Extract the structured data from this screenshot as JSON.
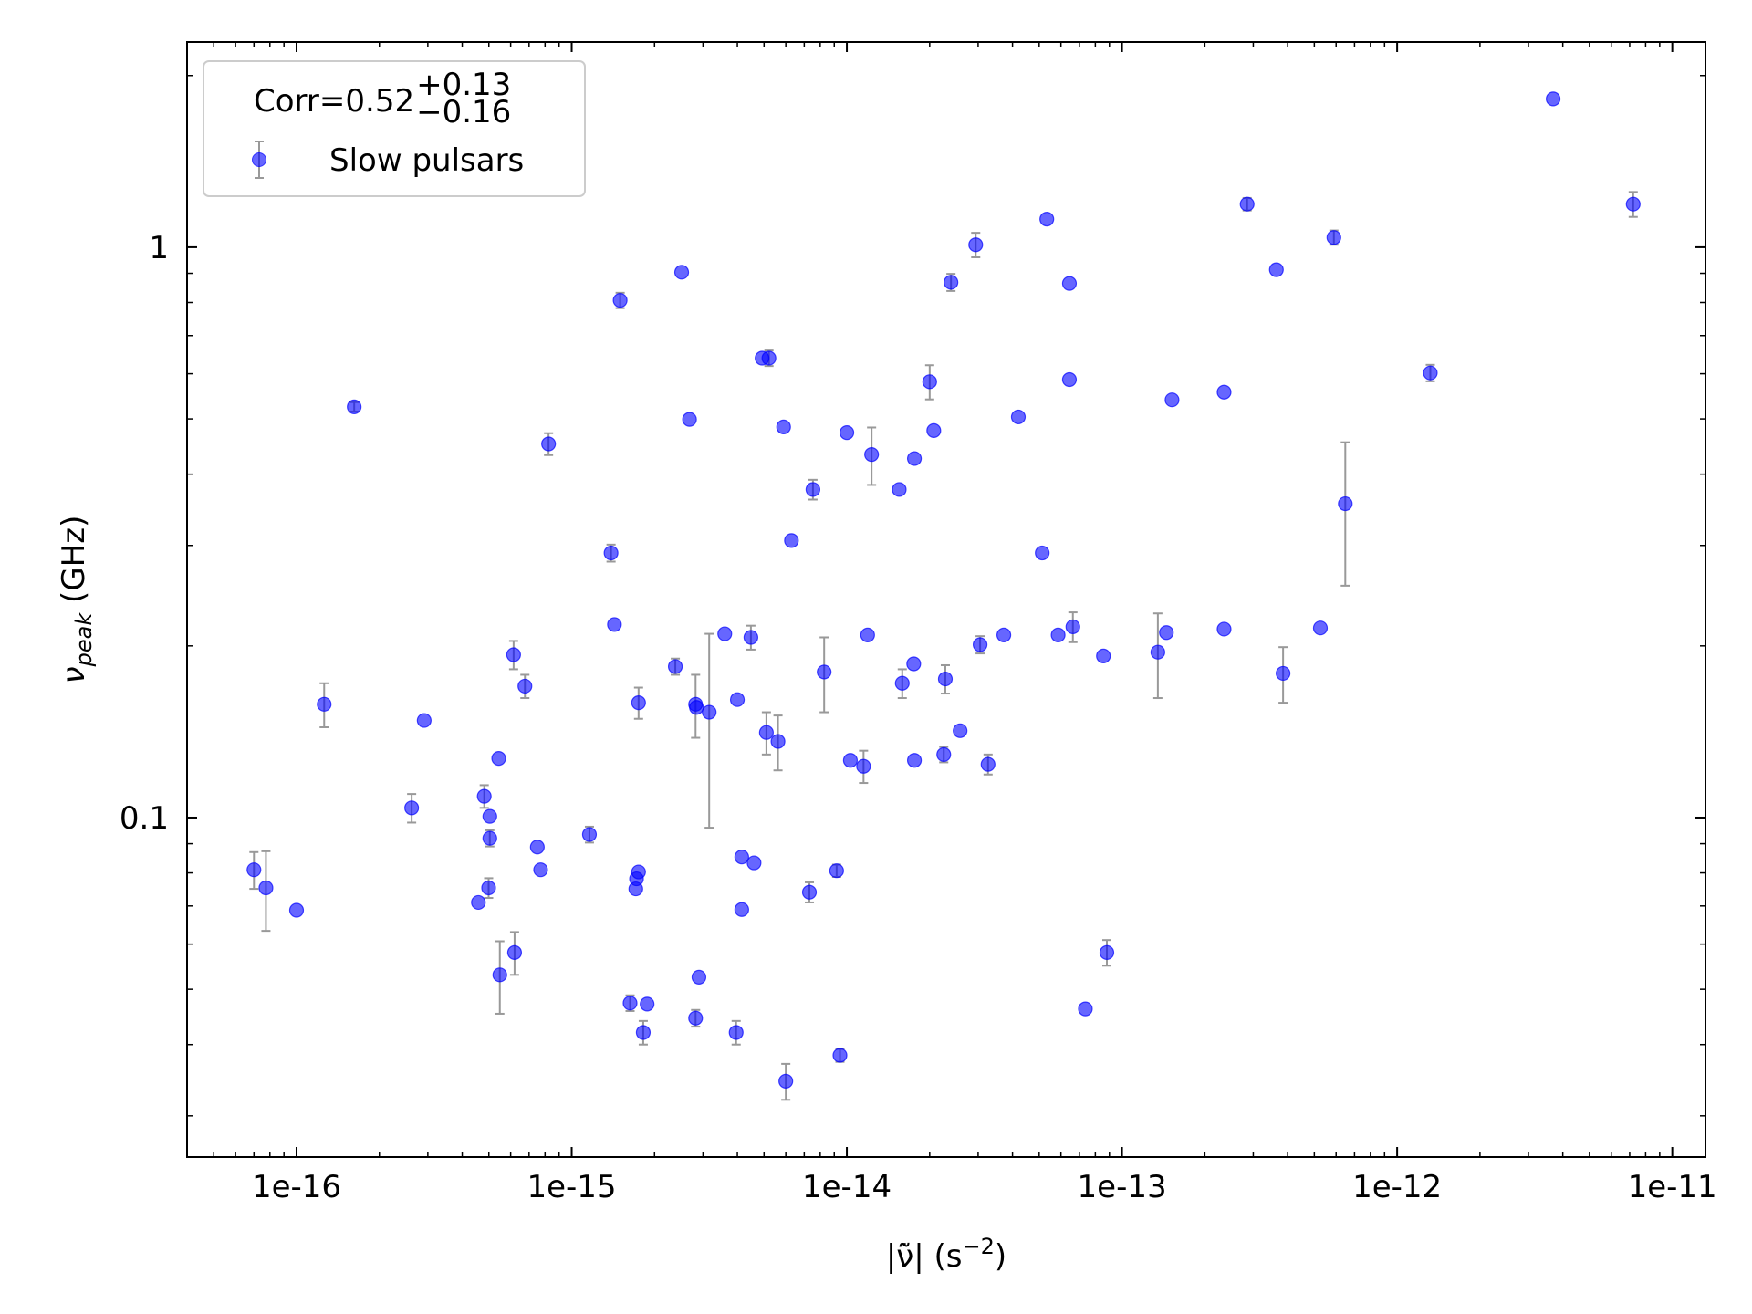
{
  "chart_data": {
    "type": "scatter",
    "x_label": {
      "text": "|ν̃̇| (s",
      "sup": "−2",
      "tail": ")"
    },
    "y_label": {
      "text": "ν",
      "sub": "peak",
      "tail": " (GHz)"
    },
    "legend_title": {
      "text": "Corr=0.52",
      "sup": "+0.13",
      "sub": "−0.16"
    },
    "legend": "upper left",
    "xscale": "log",
    "yscale": "log",
    "xlim": [
      4e-17,
      1.32e-11
    ],
    "ylim": [
      0.0254,
      2.29
    ],
    "xticks": [
      {
        "value": 1e-16,
        "label": "1e-16"
      },
      {
        "value": 1e-15,
        "label": "1e-15"
      },
      {
        "value": 1e-14,
        "label": "1e-14"
      },
      {
        "value": 1e-13,
        "label": "1e-13"
      },
      {
        "value": 1e-12,
        "label": "1e-12"
      },
      {
        "value": 1e-11,
        "label": "1e-11"
      }
    ],
    "yticks": [
      0.1,
      1
    ],
    "minor_ticks": true,
    "errorbar_color": "#999999",
    "series": [
      {
        "name": "Slow pulsars",
        "color": "#0000ff",
        "x": [
          7e-17,
          7.74e-17,
          1e-16,
          1.26e-16,
          1.62e-16,
          2.62e-16,
          2.91e-16,
          4.58e-16,
          4.81e-16,
          4.99e-16,
          5.04e-16,
          5.04e-16,
          5.43e-16,
          5.48e-16,
          6.15e-16,
          6.2e-16,
          6.76e-16,
          7.5e-16,
          7.71e-16,
          8.24e-16,
          1.16e-15,
          1.39e-15,
          1.43e-15,
          1.5e-15,
          1.63e-15,
          1.71e-15,
          1.72e-15,
          1.75e-15,
          1.75e-15,
          1.82e-15,
          1.88e-15,
          2.38e-15,
          2.51e-15,
          2.68e-15,
          2.82e-15,
          2.84e-15,
          2.82e-15,
          2.9e-15,
          3.16e-15,
          3.6e-15,
          3.96e-15,
          4e-15,
          4.15e-15,
          4.15e-15,
          4.48e-15,
          4.6e-15,
          4.92e-15,
          5.21e-15,
          5.1e-15,
          5.62e-15,
          5.89e-15,
          6e-15,
          6.29e-15,
          7.31e-15,
          7.53e-15,
          8.27e-15,
          9.18e-15,
          9.44e-15,
          1e-14,
          1.03e-14,
          1.15e-14,
          1.19e-14,
          1.23e-14,
          1.55e-14,
          1.59e-14,
          1.75e-14,
          1.76e-14,
          1.76e-14,
          2e-14,
          2.07e-14,
          2.25e-14,
          2.28e-14,
          2.39e-14,
          2.58e-14,
          2.94e-14,
          3.05e-14,
          3.26e-14,
          3.72e-14,
          4.2e-14,
          5.13e-14,
          5.33e-14,
          5.86e-14,
          6.44e-14,
          6.44e-14,
          6.63e-14,
          7.36e-14,
          8.56e-14,
          8.81e-14,
          1.35e-13,
          1.45e-13,
          1.52e-13,
          2.35e-13,
          2.35e-13,
          2.85e-13,
          3.64e-13,
          3.85e-13,
          5.26e-13,
          5.89e-13,
          6.48e-13,
          1.32e-12,
          3.69e-12,
          7.21e-12
        ],
        "values": [
          0.081,
          0.0753,
          0.0688,
          0.158,
          0.525,
          0.104,
          0.148,
          0.071,
          0.109,
          0.0753,
          0.1005,
          0.092,
          0.127,
          0.053,
          0.193,
          0.058,
          0.17,
          0.0888,
          0.081,
          0.452,
          0.0934,
          0.291,
          0.218,
          0.807,
          0.0473,
          0.075,
          0.0781,
          0.159,
          0.0803,
          0.042,
          0.0471,
          0.184,
          0.904,
          0.499,
          0.158,
          0.156,
          0.0445,
          0.0525,
          0.153,
          0.21,
          0.042,
          0.161,
          0.0853,
          0.069,
          0.207,
          0.0833,
          0.639,
          0.639,
          0.141,
          0.136,
          0.484,
          0.0345,
          0.306,
          0.074,
          0.376,
          0.18,
          0.0807,
          0.0383,
          0.473,
          0.126,
          0.123,
          0.209,
          0.433,
          0.376,
          0.172,
          0.186,
          0.426,
          0.126,
          0.581,
          0.477,
          0.129,
          0.175,
          0.868,
          0.142,
          1.01,
          0.201,
          0.124,
          0.209,
          0.504,
          0.291,
          1.12,
          0.209,
          0.864,
          0.586,
          0.216,
          0.0462,
          0.192,
          0.058,
          0.195,
          0.211,
          0.54,
          0.557,
          0.214,
          1.19,
          0.913,
          0.179,
          0.215,
          1.04,
          0.355,
          0.602,
          1.82,
          1.19
        ],
        "errors": [
          0.006,
          0.012,
          null,
          0.014,
          0.01,
          0.006,
          null,
          null,
          0.005,
          0.003,
          null,
          0.003,
          null,
          0.0077,
          0.011,
          0.005,
          0.008,
          null,
          null,
          0.02,
          0.003,
          0.01,
          null,
          0.025,
          0.0015,
          null,
          null,
          0.01,
          null,
          0.002,
          null,
          0.006,
          null,
          null,
          0.02,
          null,
          0.0015,
          null,
          0.057,
          null,
          0.002,
          null,
          null,
          null,
          0.01,
          null,
          null,
          0.02,
          0.012,
          0.015,
          null,
          0.0025,
          null,
          0.003,
          0.015,
          0.027,
          0.002,
          0.001,
          null,
          null,
          0.008,
          null,
          0.05,
          null,
          0.01,
          null,
          null,
          null,
          0.04,
          null,
          0.004,
          0.01,
          0.03,
          null,
          0.05,
          0.007,
          0.005,
          null,
          null,
          null,
          null,
          null,
          null,
          null,
          0.013,
          null,
          null,
          0.003,
          0.033,
          null,
          null,
          null,
          null,
          0.03,
          null,
          0.02,
          null,
          0.03,
          0.1,
          0.02,
          null,
          0.06
        ]
      }
    ]
  }
}
